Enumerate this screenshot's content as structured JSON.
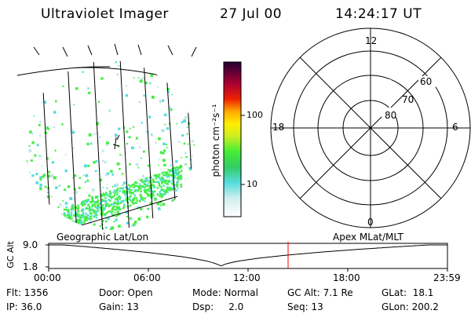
{
  "header": {
    "title": "Ultraviolet Imager",
    "date": "27 Jul 00",
    "time": "14:24:17 UT"
  },
  "colorbar": {
    "unit_label": "photon cm⁻²s⁻¹",
    "ticks": [
      "100",
      "10"
    ]
  },
  "polar_plot": {
    "mlt_labels": {
      "top": "12",
      "left": "18",
      "right": "6",
      "bottom": "0"
    },
    "lat_labels": [
      "60",
      "70",
      "80"
    ]
  },
  "projection_labels": {
    "left": "Geographic Lat/Lon",
    "right": "Apex MLat/MLT"
  },
  "altitude_plot": {
    "axis_label": "GC Alt",
    "y_ticks": [
      "9.0",
      "1.8"
    ],
    "x_ticks": [
      "00:00",
      "06:00",
      "12:00",
      "18:00",
      "23:59"
    ]
  },
  "status": {
    "row1": [
      "Flt: 1356",
      "Door: Open",
      "Mode: Normal",
      "GC Alt: 7.1 Re",
      "GLat:  18.1"
    ],
    "row2": [
      "IP: 36.0",
      "Gain: 13",
      "Dsp:     2.0",
      "Seq: 13",
      "GLon: 200.2"
    ]
  },
  "colors": {
    "marker": "#ff0000",
    "aurora_green": "#44ee44",
    "aurora_cyan": "#55dddd"
  }
}
